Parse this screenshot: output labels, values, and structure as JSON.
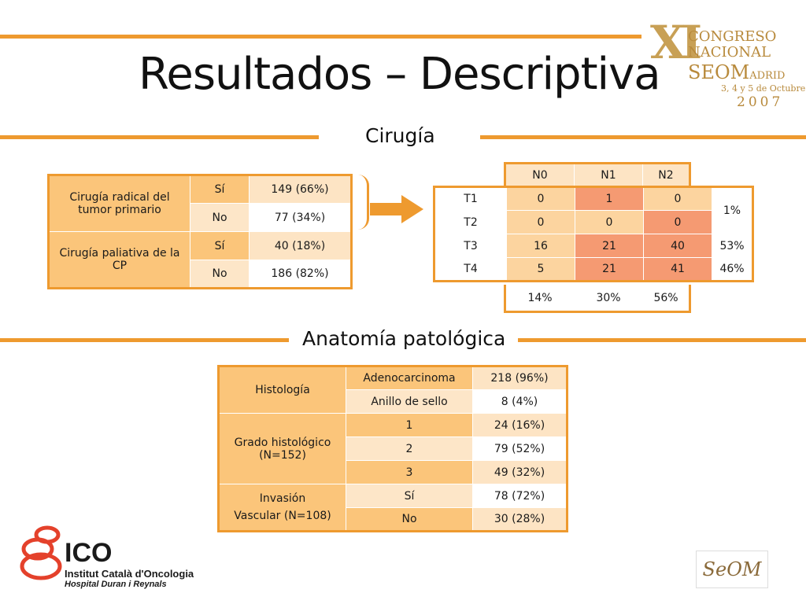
{
  "slide": {
    "title": "Resultados – Descriptiva",
    "section_surgery": "Cirugía",
    "section_pathology": "Anatomía patológica"
  },
  "congress_logo": {
    "roman": "XI",
    "line1": "CONGRESO",
    "line2": "NACIONAL",
    "line3": "SEOM",
    "line3b": "ADRID",
    "line4": "3, 4 y 5 de Octubre",
    "year": "2007"
  },
  "surgery_table": {
    "rows": [
      {
        "label": "Cirugía radical del tumor primario",
        "answer_yes": "Sí",
        "value_yes": "149 (66%)",
        "answer_no": "No",
        "value_no": "77 (34%)"
      },
      {
        "label": "Cirugía paliativa de la CP",
        "answer_yes": "Sí",
        "value_yes": "40 (18%)",
        "answer_no": "No",
        "value_no": "186 (82%)"
      }
    ]
  },
  "tn_table": {
    "col_headers": [
      "N0",
      "N1",
      "N2"
    ],
    "rows": [
      {
        "label": "T1",
        "values": [
          "0",
          "1",
          "0"
        ]
      },
      {
        "label": "T2",
        "values": [
          "0",
          "0",
          "0"
        ]
      },
      {
        "label": "T3",
        "values": [
          "16",
          "21",
          "40"
        ],
        "total": "53%"
      },
      {
        "label": "T4",
        "values": [
          "5",
          "21",
          "41"
        ],
        "total": "46%"
      }
    ],
    "t1_t2_total": "1%",
    "col_totals": [
      "14%",
      "30%",
      "56%"
    ]
  },
  "pathology_table": {
    "histology": {
      "label": "Histología",
      "rows": [
        {
          "k": "Adenocarcinoma",
          "v": "218 (96%)"
        },
        {
          "k": "Anillo de sello",
          "v": "8 (4%)"
        }
      ]
    },
    "grade": {
      "label_1": "Grado histológico",
      "label_2": "(N=152)",
      "rows": [
        {
          "k": "1",
          "v": "24 (16%)"
        },
        {
          "k": "2",
          "v": "79 (52%)"
        },
        {
          "k": "3",
          "v": "49 (32%)"
        }
      ]
    },
    "invasion": {
      "label_1": "Invasión",
      "label_2": "Vascular (N=108)",
      "rows": [
        {
          "k": "Sí",
          "v": "78 (72%)"
        },
        {
          "k": "No",
          "v": "30 (28%)"
        }
      ]
    }
  },
  "ico_logo": {
    "name": "ICO",
    "line1": "Institut Català d'Oncologia",
    "line2": "Hospital Duran i Reynals"
  },
  "seom_logo": {
    "text": "SeOM"
  },
  "colors": {
    "accent": "#ee9a2f",
    "cell_dark": "#fbc57a",
    "cell_light": "#fde6c8",
    "cell_salmon": "#f59a72"
  }
}
